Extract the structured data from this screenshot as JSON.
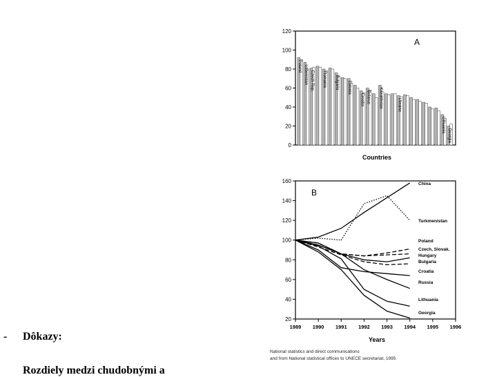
{
  "slide": {
    "bullet_dash": "-",
    "bullet_text": "Dôkazy:",
    "next_line": "Rozdiely medzi chudobnými a"
  },
  "source": {
    "line1": "National statistics and direct communications",
    "line2": "and from National statistical offices to UNECE secretariat, 1995"
  },
  "chart_data": [
    {
      "type": "bar",
      "panel_label": "A",
      "xlabel": "Countries",
      "ylabel": "",
      "ylim": [
        0,
        120
      ],
      "yticks": [
        0,
        20,
        40,
        60,
        80,
        100,
        120
      ],
      "series_colors": [
        "#b8b8b8",
        "#ffffff"
      ],
      "categories": [
        "Poland",
        "Uzbekistan",
        "Czech Rep.",
        "",
        "Romania",
        "",
        "Bulgaria",
        "",
        "Estonia",
        "",
        "Croatia",
        "Belarus",
        "",
        "Kazakhstan",
        "",
        "",
        "Ukraine",
        "",
        "",
        "",
        "",
        "",
        "",
        "Lithuania",
        "Georgia"
      ],
      "series": [
        {
          "values": [
            92,
            87,
            81,
            83,
            80,
            81,
            76,
            71,
            70,
            63,
            57,
            60,
            54,
            63,
            54,
            54,
            52,
            53,
            50,
            48,
            45,
            40,
            39,
            32,
            20
          ]
        },
        {
          "values": [
            90,
            80,
            82,
            82,
            78,
            80,
            72,
            70,
            65,
            60,
            55,
            58,
            50,
            56,
            53,
            54,
            51,
            52,
            48,
            46,
            44,
            38,
            36,
            28,
            22
          ]
        }
      ]
    },
    {
      "type": "line",
      "panel_label": "B",
      "xlabel": "Years",
      "ylabel": "",
      "x": [
        1989,
        1990,
        1991,
        1992,
        1993,
        1994
      ],
      "xticks": [
        1989,
        1990,
        1991,
        1992,
        1993,
        1994,
        1995,
        1996
      ],
      "xlim": [
        1989,
        1996
      ],
      "ylim": [
        20,
        160
      ],
      "yticks": [
        20,
        40,
        60,
        80,
        100,
        120,
        140,
        160
      ],
      "series": [
        {
          "name": "China",
          "style": "solid",
          "values": [
            100,
            103,
            112,
            128,
            143,
            158
          ]
        },
        {
          "name": "Turkmenistan",
          "style": "dotted",
          "values": [
            100,
            102,
            100,
            137,
            145,
            120
          ]
        },
        {
          "name": "Poland",
          "style": "dashed",
          "values": [
            100,
            95,
            86,
            84,
            87,
            91
          ]
        },
        {
          "name": "Czech, Slovak.",
          "style": "dashed",
          "values": [
            100,
            97,
            86,
            84,
            85,
            86
          ]
        },
        {
          "name": "Hungary",
          "style": "solid",
          "values": [
            100,
            95,
            86,
            80,
            78,
            82
          ]
        },
        {
          "name": "Bulgaria",
          "style": "dashed",
          "values": [
            100,
            93,
            85,
            78,
            75,
            76
          ]
        },
        {
          "name": "Croatia",
          "style": "solid",
          "values": [
            100,
            90,
            72,
            68,
            66,
            64
          ]
        },
        {
          "name": "Russia",
          "style": "solid",
          "values": [
            100,
            97,
            86,
            70,
            60,
            51
          ]
        },
        {
          "name": "Lithuania",
          "style": "solid",
          "values": [
            100,
            94,
            81,
            50,
            38,
            33
          ]
        },
        {
          "name": "Georgia",
          "style": "solid",
          "values": [
            100,
            88,
            70,
            44,
            28,
            21
          ]
        }
      ]
    }
  ]
}
